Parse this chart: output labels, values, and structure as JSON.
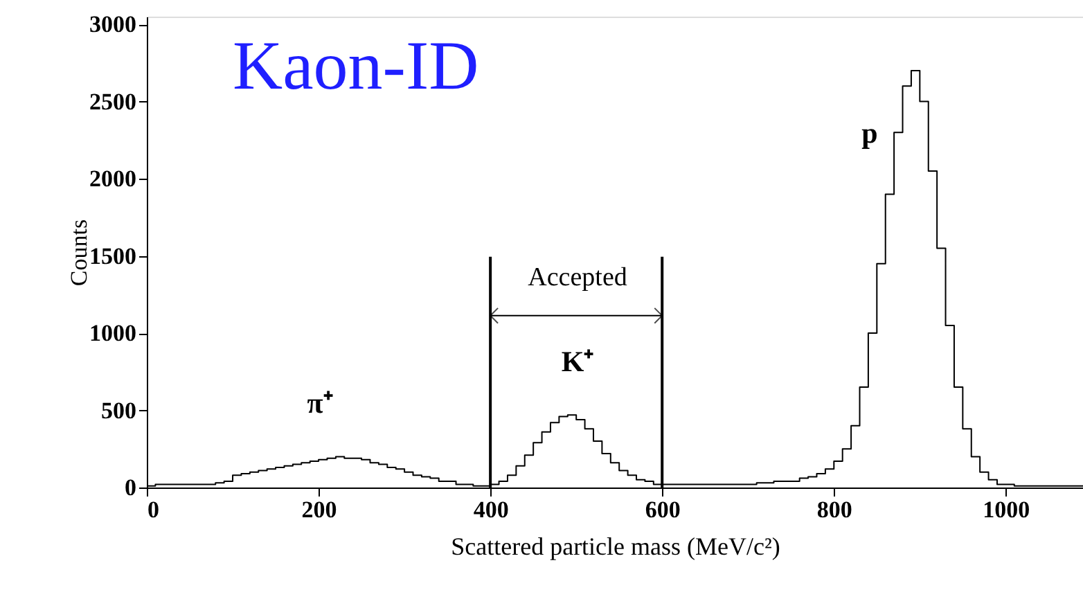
{
  "chart_data": {
    "type": "histogram",
    "title": "Kaon-ID",
    "xlabel": "Scattered particle mass (MeV/c²)",
    "ylabel": "Counts",
    "bins": [
      0,
      10,
      20,
      30,
      40,
      50,
      60,
      70,
      80,
      90,
      100,
      110,
      120,
      130,
      140,
      150,
      160,
      170,
      180,
      190,
      200,
      210,
      220,
      230,
      240,
      250,
      260,
      270,
      280,
      290,
      300,
      310,
      320,
      330,
      340,
      350,
      360,
      370,
      380,
      390,
      400,
      410,
      420,
      430,
      440,
      450,
      460,
      470,
      480,
      490,
      500,
      510,
      520,
      530,
      540,
      550,
      560,
      570,
      580,
      590,
      600,
      610,
      620,
      630,
      640,
      650,
      660,
      670,
      680,
      690,
      700,
      710,
      720,
      730,
      740,
      750,
      760,
      770,
      780,
      790,
      800,
      810,
      820,
      830,
      840,
      850,
      860,
      870,
      880,
      890,
      900,
      910,
      920,
      930,
      940,
      950,
      960,
      970,
      980,
      990,
      1000,
      1010,
      1020,
      1030,
      1040,
      1050,
      1060,
      1070,
      1080,
      1090
    ],
    "values": [
      10,
      20,
      20,
      20,
      20,
      20,
      20,
      20,
      30,
      40,
      80,
      90,
      100,
      110,
      120,
      130,
      140,
      150,
      160,
      170,
      180,
      190,
      200,
      190,
      190,
      180,
      160,
      150,
      130,
      120,
      100,
      80,
      70,
      60,
      40,
      40,
      20,
      20,
      10,
      10,
      20,
      40,
      80,
      140,
      210,
      290,
      360,
      420,
      460,
      470,
      440,
      380,
      300,
      220,
      160,
      110,
      80,
      50,
      40,
      20,
      20,
      20,
      20,
      20,
      20,
      20,
      20,
      20,
      20,
      20,
      20,
      30,
      30,
      40,
      40,
      40,
      60,
      70,
      90,
      120,
      170,
      250,
      400,
      650,
      1000,
      1450,
      1900,
      2300,
      2600,
      2700,
      2500,
      2050,
      1550,
      1050,
      650,
      380,
      200,
      100,
      50,
      20,
      20,
      10,
      10,
      10,
      10,
      10,
      10,
      10,
      10
    ],
    "color": "#000000",
    "xlim": [
      0,
      1090
    ],
    "ylim": [
      0,
      3050
    ],
    "xticks": [
      0,
      200,
      400,
      600,
      800,
      1000
    ],
    "yticks": [
      0,
      500,
      1000,
      1500,
      2000,
      2500,
      3000
    ],
    "ref_lines": [
      {
        "axis": "x",
        "value": 400,
        "color": "#000000"
      },
      {
        "axis": "x",
        "value": 600,
        "color": "#000000"
      }
    ],
    "annotations": [
      "Accepted",
      "π⁺",
      "K⁺",
      "p"
    ],
    "grid": false
  }
}
